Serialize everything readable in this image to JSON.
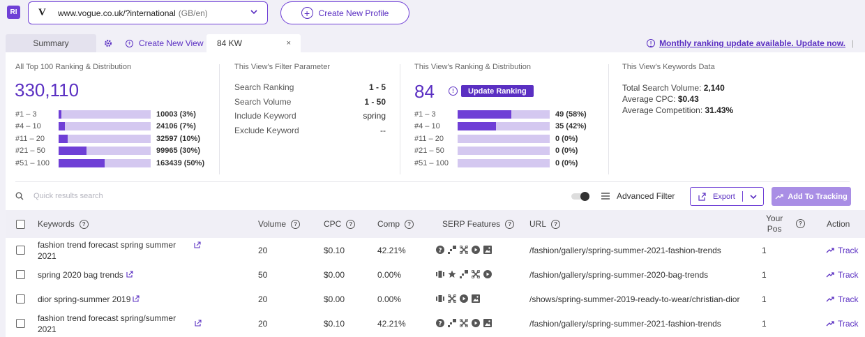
{
  "header": {
    "logo_text": "RI",
    "domain_logo": "V",
    "domain": "www.vogue.co.uk/?international",
    "domain_region": "(GB/en)",
    "create_profile_label": "Create New Profile"
  },
  "tabs": {
    "summary": "Summary",
    "create_view": "Create New View",
    "active_tab": "84 KW",
    "close": "×",
    "update_notice": "Monthly ranking update available. Update now.",
    "separator": "|"
  },
  "all_top": {
    "title": "All Top 100 Ranking & Distribution",
    "total": "330,110",
    "rows": [
      {
        "label": "#1 – 3",
        "value": "10003 (3%)",
        "fraction": 0.03
      },
      {
        "label": "#4 – 10",
        "value": "24106 (7%)",
        "fraction": 0.07
      },
      {
        "label": "#11 – 20",
        "value": "32597 (10%)",
        "fraction": 0.1
      },
      {
        "label": "#21 – 50",
        "value": "99965 (30%)",
        "fraction": 0.3
      },
      {
        "label": "#51 – 100",
        "value": "163439 (50%)",
        "fraction": 0.5
      }
    ]
  },
  "filter": {
    "title": "This View's Filter Parameter",
    "rows": [
      {
        "key": "Search Ranking",
        "value": "1 - 5",
        "bold": true
      },
      {
        "key": "Search Volume",
        "value": "1 - 50",
        "bold": true
      },
      {
        "key": "Include Keyword",
        "value": "spring",
        "bold": false
      },
      {
        "key": "Exclude Keyword",
        "value": "--",
        "bold": false
      }
    ]
  },
  "view_ranking": {
    "title": "This View's Ranking & Distribution",
    "total": "84",
    "update_label": "Update Ranking",
    "rows": [
      {
        "label": "#1 – 3",
        "value": "49 (58%)",
        "fraction": 0.58
      },
      {
        "label": "#4 – 10",
        "value": "35 (42%)",
        "fraction": 0.42
      },
      {
        "label": "#11 – 20",
        "value": "0 (0%)",
        "fraction": 0
      },
      {
        "label": "#21 – 50",
        "value": "0 (0%)",
        "fraction": 0
      },
      {
        "label": "#51 – 100",
        "value": "0 (0%)",
        "fraction": 0
      }
    ]
  },
  "keywords_data": {
    "title": "This View's Keywords Data",
    "rows": [
      {
        "key": "Total Search Volume:",
        "value": "2,140"
      },
      {
        "key": "Average CPC:",
        "value": "$0.43"
      },
      {
        "key": "Average Competition:",
        "value": "31.43%"
      }
    ]
  },
  "toolbar": {
    "search_placeholder": "Quick results search",
    "advanced_filter": "Advanced Filter",
    "export_label": "Export",
    "add_tracking_label": "Add To Tracking"
  },
  "table": {
    "headers": {
      "keywords": "Keywords",
      "volume": "Volume",
      "cpc": "CPC",
      "comp": "Comp",
      "serp": "SERP Features",
      "url": "URL",
      "your_pos_1": "Your",
      "your_pos_2": "Pos",
      "action": "Action"
    },
    "rows": [
      {
        "keyword": "fashion trend forecast spring summer 2021",
        "volume": "20",
        "cpc": "$0.10",
        "comp": "42.21%",
        "serp": [
          "question-icon",
          "snippet-icon",
          "sitelinks-icon",
          "video-icon",
          "image-icon"
        ],
        "url": "/fashion/gallery/spring-summer-2021-fashion-trends",
        "pos": "1",
        "action": "Track"
      },
      {
        "keyword": "spring 2020 bag trends",
        "volume": "50",
        "cpc": "$0.00",
        "comp": "0.00%",
        "serp": [
          "carousel-icon",
          "star-icon",
          "snippet-icon",
          "sitelinks-icon",
          "video-icon"
        ],
        "url": "/fashion/gallery/spring-summer-2020-bag-trends",
        "pos": "1",
        "action": "Track"
      },
      {
        "keyword": "dior spring-summer 2019",
        "volume": "20",
        "cpc": "$0.00",
        "comp": "0.00%",
        "serp": [
          "carousel-icon",
          "sitelinks-icon",
          "video-icon",
          "image-icon"
        ],
        "url": "/shows/spring-summer-2019-ready-to-wear/christian-dior",
        "pos": "1",
        "action": "Track"
      },
      {
        "keyword": "fashion trend forecast spring/summer 2021",
        "volume": "20",
        "cpc": "$0.10",
        "comp": "42.21%",
        "serp": [
          "question-icon",
          "snippet-icon",
          "sitelinks-icon",
          "video-icon",
          "image-icon"
        ],
        "url": "/fashion/gallery/spring-summer-2021-fashion-trends",
        "pos": "1",
        "action": "Track"
      }
    ]
  }
}
